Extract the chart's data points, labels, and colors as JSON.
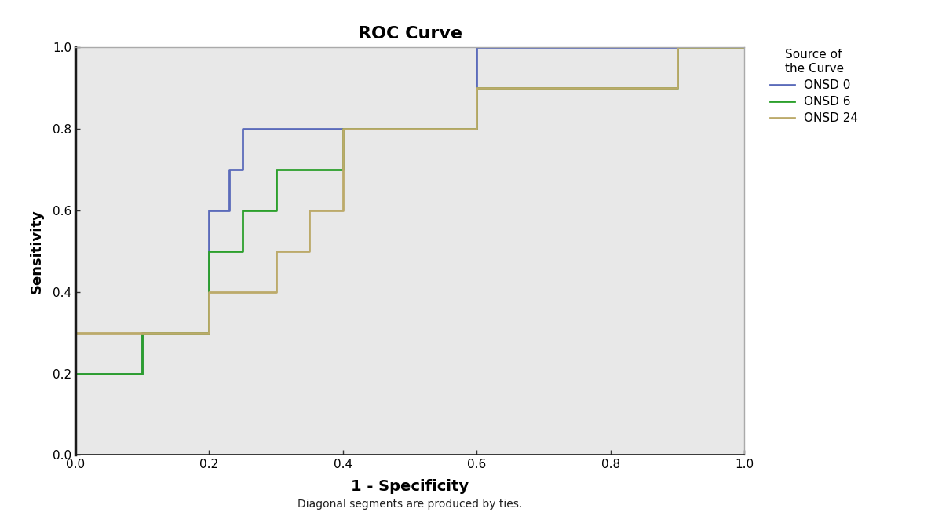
{
  "title": "ROC Curve",
  "xlabel": "1 - Specificity",
  "ylabel": "Sensitivity",
  "footnote": "Diagonal segments are produced by ties.",
  "legend_title": "Source of\nthe Curve",
  "background_color": "#e8e8e8",
  "outer_background": "#ffffff",
  "xlim": [
    0.0,
    1.0
  ],
  "ylim": [
    0.0,
    1.0
  ],
  "xticks": [
    0.0,
    0.2,
    0.4,
    0.6,
    0.8,
    1.0
  ],
  "yticks": [
    0.0,
    0.2,
    0.4,
    0.6,
    0.8,
    1.0
  ],
  "curves": {
    "ONSD 0": {
      "color": "#5b6bba",
      "x": [
        0.0,
        0.0,
        0.1,
        0.1,
        0.2,
        0.2,
        0.23,
        0.23,
        0.25,
        0.25,
        0.35,
        0.35,
        0.6,
        0.6,
        1.0
      ],
      "y": [
        0.0,
        0.2,
        0.2,
        0.3,
        0.3,
        0.6,
        0.6,
        0.7,
        0.7,
        0.8,
        0.8,
        0.8,
        0.8,
        1.0,
        1.0
      ]
    },
    "ONSD 6": {
      "color": "#2ca02c",
      "x": [
        0.0,
        0.0,
        0.1,
        0.1,
        0.2,
        0.2,
        0.25,
        0.25,
        0.3,
        0.3,
        0.4,
        0.4,
        0.5,
        0.5,
        0.6,
        0.6,
        0.9,
        0.9,
        1.0
      ],
      "y": [
        0.0,
        0.2,
        0.2,
        0.3,
        0.3,
        0.5,
        0.5,
        0.6,
        0.6,
        0.7,
        0.7,
        0.8,
        0.8,
        0.8,
        0.8,
        0.9,
        0.9,
        1.0,
        1.0
      ]
    },
    "ONSD 24": {
      "color": "#bcaa6a",
      "x": [
        0.0,
        0.0,
        0.2,
        0.2,
        0.3,
        0.3,
        0.35,
        0.35,
        0.4,
        0.4,
        0.5,
        0.5,
        0.6,
        0.6,
        0.9,
        0.9,
        1.0
      ],
      "y": [
        0.0,
        0.3,
        0.3,
        0.4,
        0.4,
        0.5,
        0.5,
        0.6,
        0.6,
        0.8,
        0.8,
        0.8,
        0.8,
        0.9,
        0.9,
        1.0,
        1.0
      ]
    }
  },
  "legend_labels": [
    "ONSD 0",
    "ONSD 6",
    "ONSD 24"
  ],
  "legend_colors": [
    "#5b6bba",
    "#2ca02c",
    "#bcaa6a"
  ],
  "figsize": [
    12.0,
    6.66
  ],
  "dpi": 100
}
